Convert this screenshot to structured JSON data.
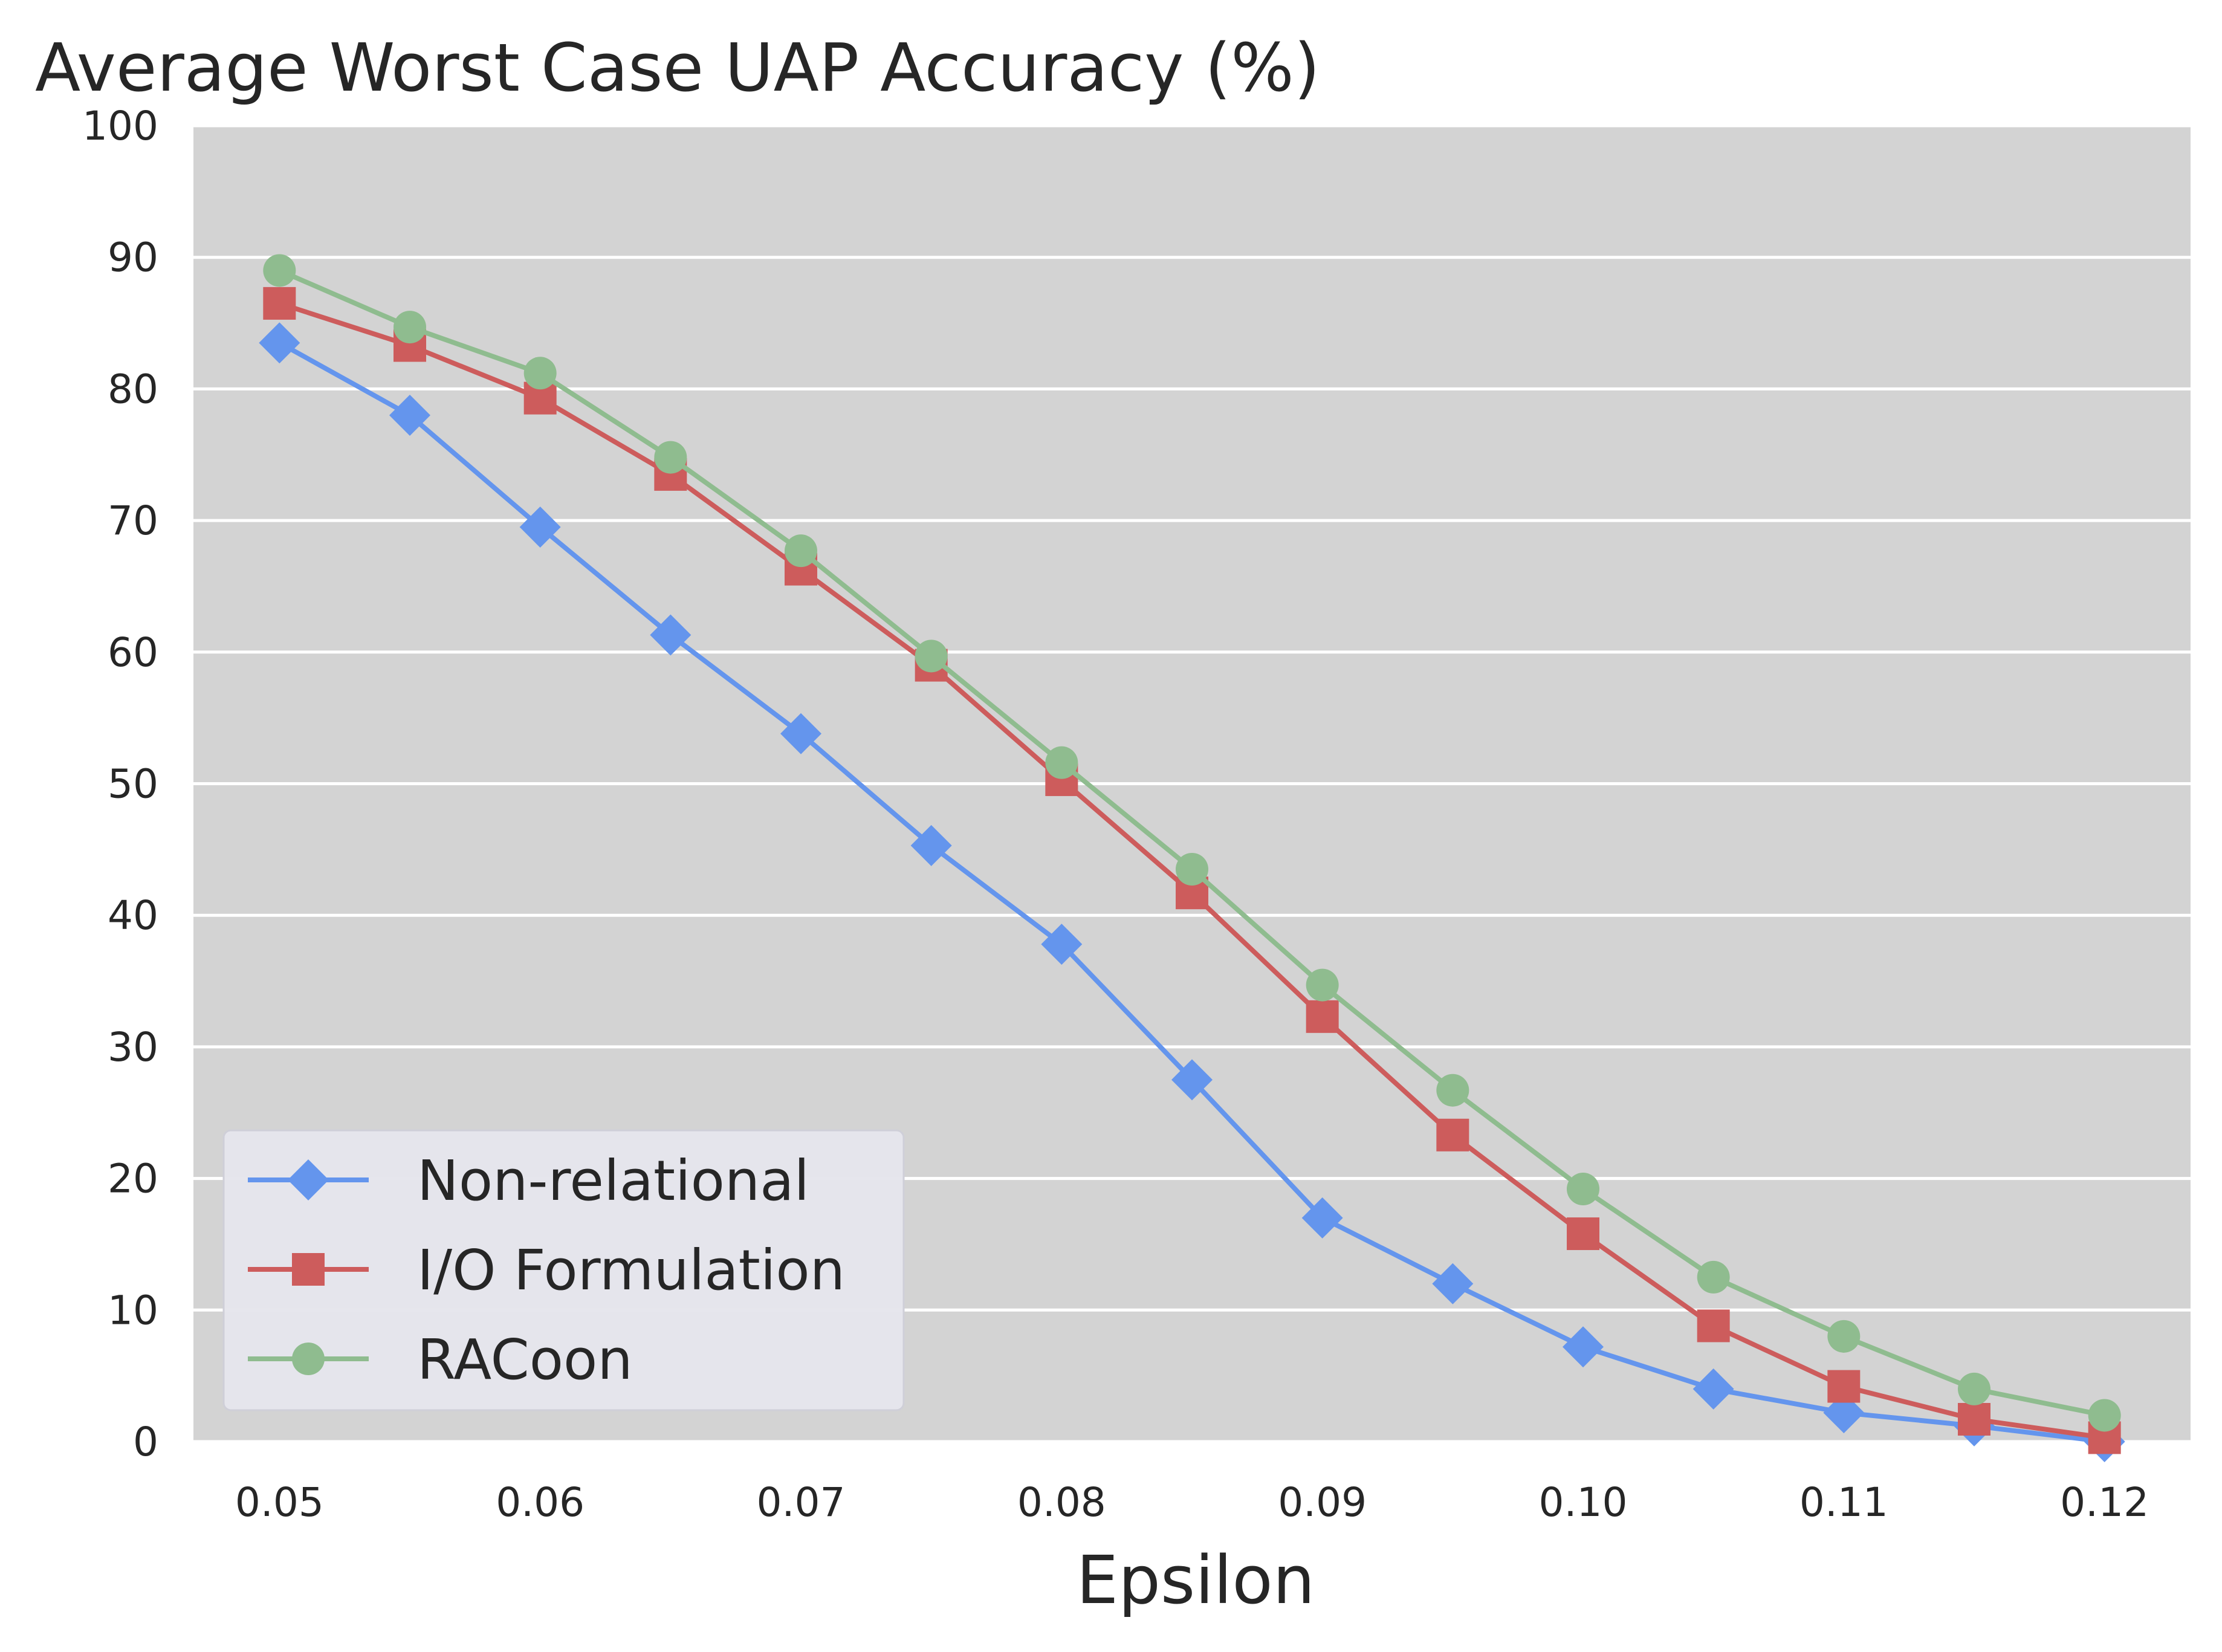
{
  "chart_data": {
    "type": "line",
    "title": "Average Worst Case UAP Accuracy (%)",
    "xlabel": "Epsilon",
    "ylabel": "",
    "x": [
      0.05,
      0.055,
      0.06,
      0.065,
      0.07,
      0.075,
      0.08,
      0.085,
      0.09,
      0.095,
      0.1,
      0.105,
      0.11,
      0.115,
      0.12
    ],
    "xlim": [
      0.0467,
      0.1233
    ],
    "ylim": [
      0,
      100
    ],
    "xticks": [
      0.05,
      0.06,
      0.07,
      0.08,
      0.09,
      0.1,
      0.11,
      0.12
    ],
    "xtick_labels": [
      "0.05",
      "0.06",
      "0.07",
      "0.08",
      "0.09",
      "0.10",
      "0.11",
      "0.12"
    ],
    "yticks": [
      0,
      10,
      20,
      30,
      40,
      50,
      60,
      70,
      80,
      90,
      100
    ],
    "ytick_labels": [
      "0",
      "10",
      "20",
      "30",
      "40",
      "50",
      "60",
      "70",
      "80",
      "90",
      "100"
    ],
    "grid": "horizontal",
    "background_color": "#d3d3d3",
    "grid_color": "#ffffff",
    "legend_position": "lower-left",
    "series": [
      {
        "name": "Non-relational",
        "color": "#6495ed",
        "marker": "diamond",
        "values": [
          83.5,
          78.0,
          69.5,
          61.3,
          53.8,
          45.3,
          37.8,
          27.5,
          17.0,
          12.0,
          7.2,
          4.0,
          2.2,
          1.2,
          0.0
        ]
      },
      {
        "name": "I/O Formulation",
        "color": "#cd5c5c",
        "marker": "square",
        "values": [
          86.5,
          83.3,
          79.3,
          73.5,
          66.3,
          59.0,
          50.3,
          41.7,
          32.3,
          23.3,
          15.8,
          8.8,
          4.2,
          1.7,
          0.3
        ]
      },
      {
        "name": "RACoon",
        "color": "#8fbc8f",
        "marker": "circle",
        "values": [
          89.0,
          84.7,
          81.2,
          74.8,
          67.7,
          59.7,
          51.6,
          43.5,
          34.7,
          26.7,
          19.2,
          12.5,
          8.0,
          4.0,
          2.0
        ]
      }
    ]
  }
}
